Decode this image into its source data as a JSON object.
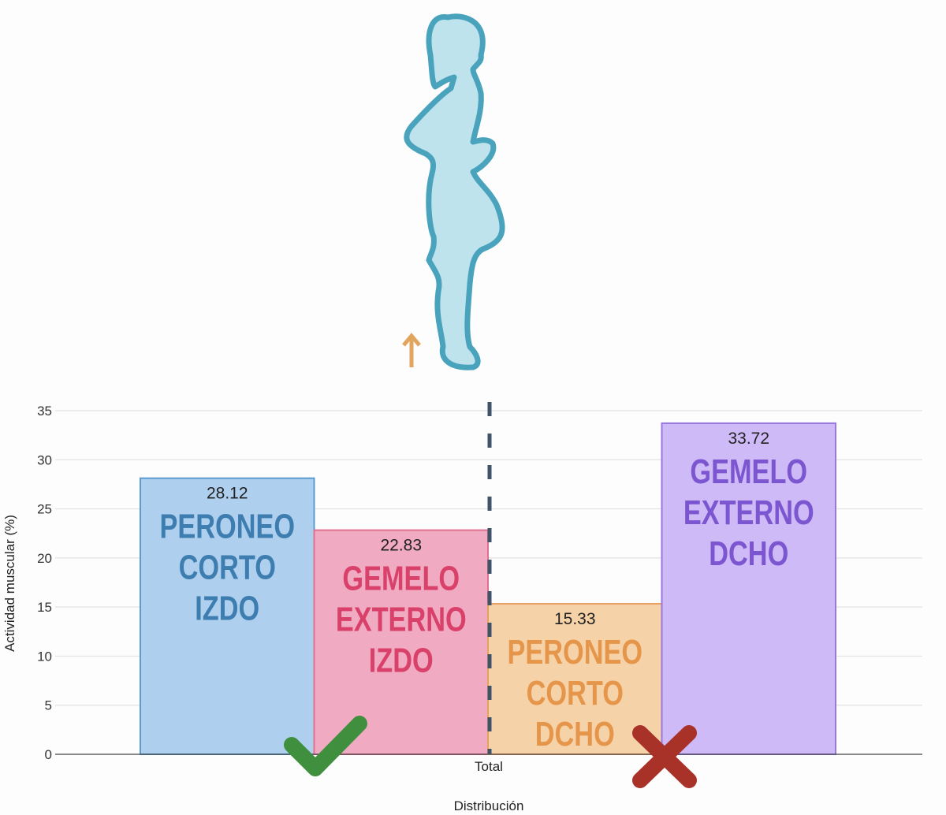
{
  "chart_data": {
    "type": "bar",
    "categories": [
      "Total"
    ],
    "series": [
      {
        "name": "PERONEO CORTO IZDO",
        "values": [
          28.12
        ],
        "color": "#aed0ee",
        "stroke": "#5a9bd0",
        "text_color": "#3d7db0"
      },
      {
        "name": "GEMELO EXTERNO IZDO",
        "values": [
          22.83
        ],
        "color": "#f0aac2",
        "stroke": "#e0708f",
        "text_color": "#d9416a"
      },
      {
        "name": "PERONEO CORTO DCHO",
        "values": [
          15.33
        ],
        "color": "#f6d2a8",
        "stroke": "#e8a060",
        "text_color": "#e5964a"
      },
      {
        "name": "GEMELO EXTERNO DCHO",
        "values": [
          33.72
        ],
        "color": "#cdbaf6",
        "stroke": "#9a78e0",
        "text_color": "#7c55d0"
      }
    ],
    "data_labels": [
      "28.12",
      "22.83",
      "15.33",
      "33.72"
    ],
    "xlabel": "Distribución",
    "ylabel": "Actividad muscular (%)",
    "ylim": [
      0,
      35
    ],
    "yticks": [
      "0",
      "5",
      "10",
      "15",
      "20",
      "25",
      "30",
      "35"
    ],
    "grid": true,
    "annotations": {
      "check_icon_color": "#3f8f3f",
      "cross_icon_color": "#a83228",
      "arrow_icon_color": "#e2a55e",
      "silhouette_color": "#bfe3ec",
      "silhouette_outline": "#4aa3bd",
      "center_line_color": "#3f5468"
    }
  }
}
